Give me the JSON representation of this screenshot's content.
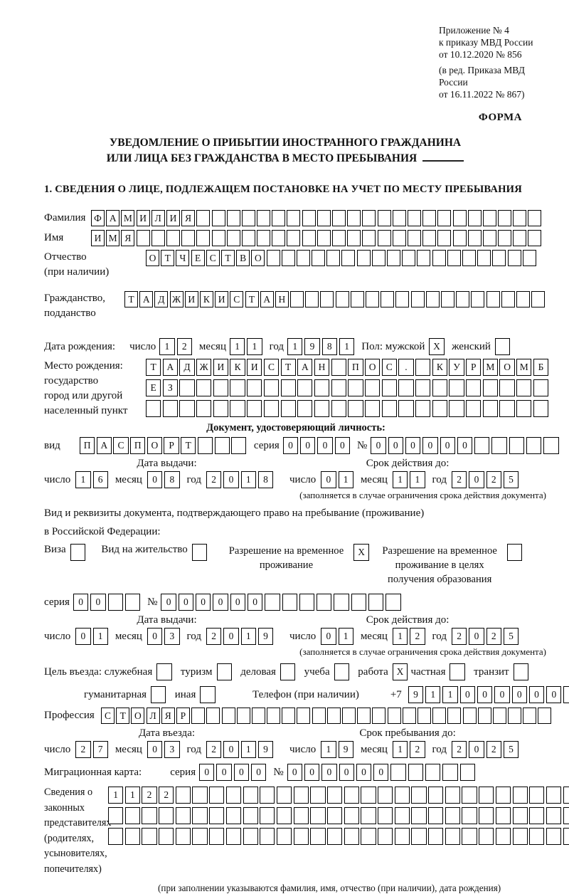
{
  "page": {
    "appendix": [
      "Приложение № 4",
      "к приказу МВД России",
      "от 10.12.2020 № 856"
    ],
    "edition": [
      "(в ред. Приказа МВД России",
      "от 16.11.2022 № 867)"
    ],
    "form_label": "ФОРМА",
    "title_line1": "УВЕДОМЛЕНИЕ О ПРИБЫТИИ ИНОСТРАННОГО ГРАЖДАНИНА",
    "title_line2": "ИЛИ ЛИЦА БЕЗ ГРАЖДАНСТВА В МЕСТО ПРЕБЫВАНИЯ",
    "section1_heading": "1. СВЕДЕНИЯ О ЛИЦЕ, ПОДЛЕЖАЩЕМ ПОСТАНОВКЕ НА УЧЕТ ПО МЕСТУ ПРЕБЫВАНИЯ"
  },
  "labels": {
    "surname": "Фамилия",
    "name": "Имя",
    "patronymic1": "Отчество",
    "patronymic2": "(при наличии)",
    "citizenship1": "Гражданство,",
    "citizenship2": "подданство",
    "birth_date": "Дата рождения:",
    "day": "число",
    "month": "месяц",
    "year": "год",
    "sex_male": "Пол: мужской",
    "sex_female": "женский",
    "birth_place": "Место рождения:",
    "state": "государство",
    "city1": "город или другой",
    "city2": "населенный пункт",
    "doc_header": "Документ, удостоверяющий личность:",
    "kind": "вид",
    "series": "серия",
    "number": "№",
    "issue_date": "Дата выдачи:",
    "valid_until": "Срок действия до:",
    "valid_note": "(заполняется в случае ограничения срока действия документа)",
    "permit_line1": "Вид и реквизиты документа, подтверждающего право на пребывание (проживание)",
    "permit_line2": "в Российской Федерации:",
    "visa": "Виза",
    "residence": "Вид на жительство",
    "temp_permit": "Разрешение на временное проживание",
    "edu_permit": "Разрешение на временное проживание в целях получения образования",
    "purpose": "Цель въезда: служебная",
    "tourism": "туризм",
    "business": "деловая",
    "study": "учеба",
    "work": "работа",
    "private": "частная",
    "transit": "транзит",
    "humanitarian": "гуманитарная",
    "other": "иная",
    "phone": "Телефон (при наличии)",
    "phone_prefix": "+7",
    "profession": "Профессия",
    "entry_date": "Дата въезда:",
    "stay_until": "Срок пребывания до:",
    "migration_card": "Миграционная карта:",
    "reps": [
      "Сведения о",
      "законных",
      "представителях",
      "(родителях,",
      "усыновителях,",
      "попечителях)"
    ],
    "rep_note": "(при заполнении указываются фамилия, имя, отчество (при наличии), дата рождения)"
  },
  "fields": {
    "surname": {
      "value": "ФАМИЛИЯ",
      "count": 30
    },
    "name": {
      "value": "ИМЯ",
      "count": 30
    },
    "patronymic": {
      "value": "ОТЧЕСТВО",
      "count": 26
    },
    "citizenship": {
      "value": "ТАДЖИКИСТАН",
      "count": 28
    },
    "birth": {
      "day": "12",
      "month": "11",
      "year": "1981"
    },
    "sex_male_cb": {
      "value": "X",
      "count": 1
    },
    "sex_female_cb": {
      "value": "",
      "count": 1
    },
    "birthplace1": {
      "value": "ТАДЖИКИСТАН ПОС. КУРМОМБ",
      "count": 24
    },
    "birthplace2": {
      "value": "ЕЗ",
      "count": 24
    },
    "birthplace3": {
      "value": "",
      "count": 24
    },
    "doc_kind": {
      "value": "ПАСПОРТ",
      "count": 10
    },
    "doc_series": {
      "value": "0000",
      "count": 4
    },
    "doc_number": {
      "value": "000000",
      "count": 11
    },
    "doc_issue": {
      "day": "16",
      "month": "08",
      "year": "2018"
    },
    "doc_valid": {
      "day": "01",
      "month": "11",
      "year": "2025"
    },
    "visa_cb": {
      "value": "",
      "count": 1
    },
    "residence_cb": {
      "value": "",
      "count": 1
    },
    "temp_permit_cb": {
      "value": "X",
      "count": 1
    },
    "edu_permit_cb": {
      "value": "",
      "count": 1
    },
    "permit_series": {
      "value": "00",
      "count": 4
    },
    "permit_number": {
      "value": "000000",
      "count": 14
    },
    "permit_issue": {
      "day": "01",
      "month": "03",
      "year": "2019"
    },
    "permit_valid": {
      "day": "01",
      "month": "12",
      "year": "2025"
    },
    "purpose_official_cb": {
      "value": "",
      "count": 1
    },
    "purpose_tourism_cb": {
      "value": "",
      "count": 1
    },
    "purpose_business_cb": {
      "value": "",
      "count": 1
    },
    "purpose_study_cb": {
      "value": "",
      "count": 1
    },
    "purpose_work_cb": {
      "value": "X",
      "count": 1
    },
    "purpose_private_cb": {
      "value": "",
      "count": 1
    },
    "purpose_transit_cb": {
      "value": "",
      "count": 1
    },
    "purpose_humanitarian_cb": {
      "value": "",
      "count": 1
    },
    "purpose_other_cb": {
      "value": "",
      "count": 1
    },
    "phone": {
      "value": "911000000",
      "count": 10
    },
    "profession": {
      "value": "СТОЛЯР",
      "count": 30
    },
    "entry": {
      "day": "27",
      "month": "03",
      "year": "2019"
    },
    "stay": {
      "day": "19",
      "month": "12",
      "year": "2025"
    },
    "mig_series": {
      "value": "0000",
      "count": 4
    },
    "mig_number": {
      "value": "000000",
      "count": 11
    },
    "rep_row1": {
      "value": "1122",
      "count": 29
    },
    "rep_row2": {
      "value": "",
      "count": 29
    },
    "rep_row3": {
      "value": "",
      "count": 29
    }
  }
}
